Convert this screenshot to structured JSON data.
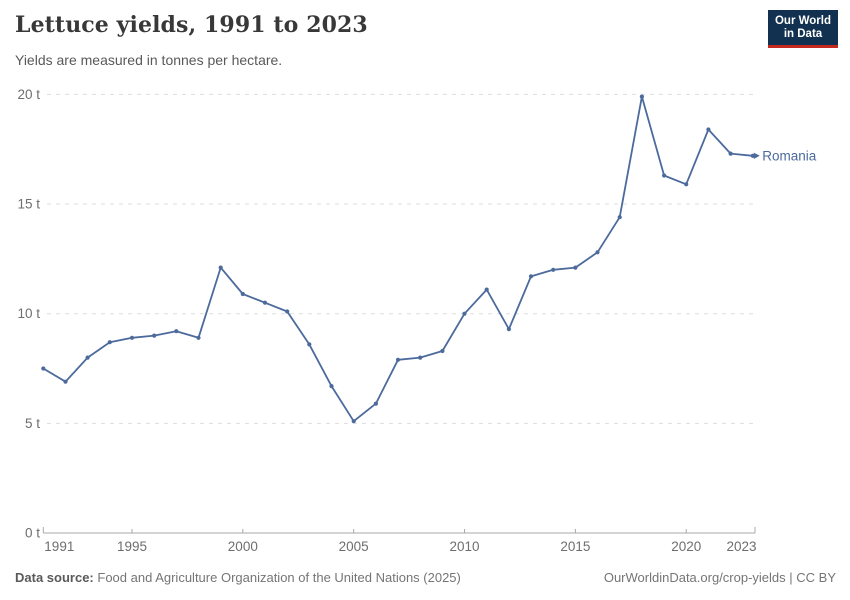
{
  "header": {
    "title": "Lettuce yields, 1991 to 2023",
    "subtitle": "Yields are measured in tonnes per hectare.",
    "logo": {
      "line1": "Our World",
      "line2": "in Data",
      "bg_color": "#12304f",
      "accent_color": "#c5281e"
    }
  },
  "chart_data": {
    "type": "line",
    "title": "Lettuce yields, 1991 to 2023",
    "ylabel": "tonnes per hectare",
    "xlabel": "",
    "xlim": [
      1991,
      2023
    ],
    "ylim": [
      0,
      20
    ],
    "grid": "horizontal-dashed",
    "legend_position": "end-of-line-label",
    "y_ticks": [
      0,
      5,
      10,
      15,
      20
    ],
    "y_tick_suffix": " t",
    "x_ticks": [
      1991,
      1995,
      2000,
      2005,
      2010,
      2015,
      2020,
      2023
    ],
    "x": [
      1991,
      1992,
      1993,
      1994,
      1995,
      1996,
      1997,
      1998,
      1999,
      2000,
      2001,
      2002,
      2003,
      2004,
      2005,
      2006,
      2007,
      2008,
      2009,
      2010,
      2011,
      2012,
      2013,
      2014,
      2015,
      2016,
      2017,
      2018,
      2019,
      2020,
      2021,
      2022,
      2023
    ],
    "series": [
      {
        "name": "Romania",
        "color": "#4C6A9C",
        "values": [
          7.5,
          6.9,
          8.0,
          8.7,
          8.9,
          9.0,
          9.2,
          8.9,
          12.1,
          10.9,
          10.5,
          10.1,
          8.6,
          6.7,
          5.1,
          5.9,
          7.9,
          8.0,
          8.3,
          10.0,
          11.1,
          9.3,
          11.7,
          12.0,
          12.1,
          12.8,
          14.4,
          19.9,
          16.3,
          15.9,
          18.4,
          17.3,
          17.2
        ]
      }
    ],
    "colors": {
      "grid": "#dddddd",
      "axis": "#a8a8a8",
      "tick_label": "#6e6e6e"
    }
  },
  "footer": {
    "source_label": "Data source:",
    "source_text": "Food and Agriculture Organization of the United Nations (2025)",
    "right_text": "OurWorldinData.org/crop-yields | CC BY"
  }
}
